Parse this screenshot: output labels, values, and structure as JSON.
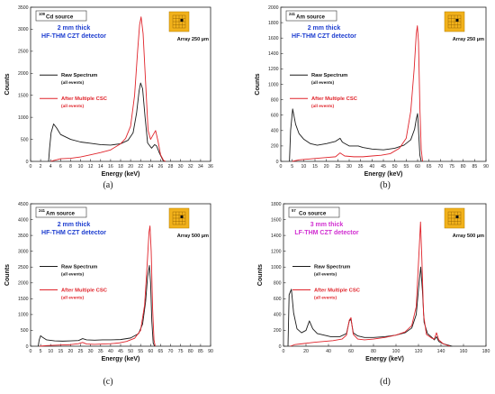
{
  "colors": {
    "raw": "#1a1a1a",
    "csc": "#e0242b",
    "thick_blue": "#1f3fd0",
    "thick_magenta": "#d12fd1",
    "pixel_gold": "#f2b21b"
  },
  "chart_data": [
    {
      "type": "line",
      "panel_label": "(a)",
      "source": {
        "sup": "109",
        "text": "Cd source"
      },
      "detector": {
        "line1": "2 mm thick",
        "line2": "HF-THM CZT detector",
        "color": "blue"
      },
      "array": "Array  250 µm",
      "xlabel": "Energy (keV)",
      "ylabel": "Counts",
      "xlim": [
        0,
        36
      ],
      "ylim": [
        0,
        3500
      ],
      "xticks": [
        0,
        2,
        4,
        6,
        8,
        10,
        12,
        14,
        16,
        18,
        20,
        22,
        24,
        26,
        28,
        30,
        32,
        34,
        36
      ],
      "yticks": [
        0,
        500,
        1000,
        1500,
        2000,
        2500,
        3000,
        3500
      ],
      "series": [
        {
          "name": "Raw Spectrum",
          "sub": "(all events)",
          "color": "raw",
          "points": [
            [
              3.6,
              0
            ],
            [
              3.8,
              300
            ],
            [
              4.1,
              650
            ],
            [
              4.6,
              850
            ],
            [
              5.2,
              760
            ],
            [
              6,
              610
            ],
            [
              8,
              500
            ],
            [
              10,
              440
            ],
            [
              12,
              410
            ],
            [
              14,
              380
            ],
            [
              16,
              370
            ],
            [
              18,
              400
            ],
            [
              19.5,
              480
            ],
            [
              20.5,
              650
            ],
            [
              21.2,
              1100
            ],
            [
              21.7,
              1600
            ],
            [
              22,
              1780
            ],
            [
              22.4,
              1650
            ],
            [
              22.9,
              1000
            ],
            [
              23.4,
              420
            ],
            [
              24.2,
              300
            ],
            [
              24.8,
              380
            ],
            [
              25.2,
              350
            ],
            [
              25.8,
              180
            ],
            [
              26.5,
              20
            ],
            [
              27,
              0
            ]
          ]
        },
        {
          "name": "After Multiple CSC",
          "sub": "(all events)",
          "color": "csc",
          "points": [
            [
              4,
              0
            ],
            [
              4.6,
              20
            ],
            [
              6,
              60
            ],
            [
              8,
              70
            ],
            [
              10,
              100
            ],
            [
              12,
              150
            ],
            [
              14,
              200
            ],
            [
              16,
              260
            ],
            [
              18,
              400
            ],
            [
              19,
              520
            ],
            [
              20,
              800
            ],
            [
              20.8,
              1500
            ],
            [
              21.4,
              2500
            ],
            [
              21.8,
              3100
            ],
            [
              22.1,
              3280
            ],
            [
              22.5,
              2900
            ],
            [
              23,
              1800
            ],
            [
              23.5,
              700
            ],
            [
              24,
              500
            ],
            [
              24.6,
              620
            ],
            [
              25,
              700
            ],
            [
              25.5,
              450
            ],
            [
              26,
              150
            ],
            [
              26.6,
              20
            ],
            [
              27,
              0
            ]
          ]
        }
      ]
    },
    {
      "type": "line",
      "panel_label": "(b)",
      "source": {
        "sup": "241",
        "text": "Am source"
      },
      "detector": {
        "line1": "2 mm thick",
        "line2": "HF-THM CZT detector",
        "color": "blue"
      },
      "array": "Array  250 µm",
      "xlabel": "Energy (keV)",
      "ylabel": "Counts",
      "xlim": [
        0,
        90
      ],
      "ylim": [
        0,
        2000
      ],
      "xticks": [
        0,
        5,
        10,
        15,
        20,
        25,
        30,
        35,
        40,
        45,
        50,
        55,
        60,
        65,
        70,
        75,
        80,
        85,
        90
      ],
      "yticks": [
        0,
        200,
        400,
        600,
        800,
        1000,
        1200,
        1400,
        1600,
        1800,
        2000
      ],
      "series": [
        {
          "name": "Raw Spectrum",
          "sub": "(all events)",
          "color": "raw",
          "points": [
            [
              3.8,
              0
            ],
            [
              4.3,
              400
            ],
            [
              5.2,
              680
            ],
            [
              6.5,
              480
            ],
            [
              8,
              360
            ],
            [
              10,
              290
            ],
            [
              13,
              230
            ],
            [
              16,
              210
            ],
            [
              20,
              230
            ],
            [
              24,
              260
            ],
            [
              26,
              300
            ],
            [
              27,
              250
            ],
            [
              30,
              200
            ],
            [
              34,
              200
            ],
            [
              36,
              180
            ],
            [
              40,
              160
            ],
            [
              45,
              150
            ],
            [
              50,
              170
            ],
            [
              54,
              210
            ],
            [
              57,
              280
            ],
            [
              58.7,
              420
            ],
            [
              59.5,
              560
            ],
            [
              60,
              620
            ],
            [
              60.5,
              350
            ],
            [
              61,
              80
            ],
            [
              61.6,
              0
            ]
          ]
        },
        {
          "name": "After Multiple CSC",
          "sub": "(all events)",
          "color": "csc",
          "points": [
            [
              5,
              0
            ],
            [
              8,
              20
            ],
            [
              12,
              30
            ],
            [
              16,
              40
            ],
            [
              20,
              50
            ],
            [
              24,
              60
            ],
            [
              26,
              110
            ],
            [
              28,
              70
            ],
            [
              32,
              60
            ],
            [
              36,
              60
            ],
            [
              40,
              70
            ],
            [
              44,
              80
            ],
            [
              48,
              100
            ],
            [
              52,
              170
            ],
            [
              55,
              300
            ],
            [
              57,
              650
            ],
            [
              58.5,
              1200
            ],
            [
              59.4,
              1650
            ],
            [
              59.9,
              1760
            ],
            [
              60.4,
              1550
            ],
            [
              61,
              700
            ],
            [
              61.6,
              150
            ],
            [
              62.2,
              0
            ]
          ]
        }
      ]
    },
    {
      "type": "line",
      "panel_label": "(c)",
      "source": {
        "sup": "241",
        "text": "Am source"
      },
      "detector": {
        "line1": "2 mm thick",
        "line2": "HF-THM CZT detector",
        "color": "blue"
      },
      "array": "Array  500 µm",
      "xlabel": "Energy (keV)",
      "ylabel": "Counts",
      "xlim": [
        0,
        90
      ],
      "ylim": [
        0,
        4500
      ],
      "xticks": [
        0,
        5,
        10,
        15,
        20,
        25,
        30,
        35,
        40,
        45,
        50,
        55,
        60,
        65,
        70,
        75,
        80,
        85,
        90
      ],
      "yticks": [
        0,
        500,
        1000,
        1500,
        2000,
        2500,
        3000,
        3500,
        4000,
        4500
      ],
      "series": [
        {
          "name": "Raw Spectrum",
          "sub": "(all events)",
          "color": "raw",
          "points": [
            [
              3.8,
              0
            ],
            [
              4.3,
              200
            ],
            [
              5,
              330
            ],
            [
              6,
              280
            ],
            [
              8,
              200
            ],
            [
              12,
              170
            ],
            [
              16,
              160
            ],
            [
              20,
              170
            ],
            [
              24,
              180
            ],
            [
              26,
              240
            ],
            [
              28,
              200
            ],
            [
              32,
              190
            ],
            [
              36,
              200
            ],
            [
              40,
              200
            ],
            [
              45,
              210
            ],
            [
              50,
              260
            ],
            [
              54,
              400
            ],
            [
              56,
              700
            ],
            [
              57.5,
              1400
            ],
            [
              58.5,
              2200
            ],
            [
              59.4,
              2550
            ],
            [
              60,
              2000
            ],
            [
              60.6,
              800
            ],
            [
              61.3,
              100
            ],
            [
              62,
              0
            ]
          ]
        },
        {
          "name": "After Multiple CSC",
          "sub": "(all events)",
          "color": "csc",
          "points": [
            [
              4.5,
              0
            ],
            [
              8,
              20
            ],
            [
              12,
              30
            ],
            [
              16,
              40
            ],
            [
              20,
              50
            ],
            [
              24,
              80
            ],
            [
              26,
              120
            ],
            [
              28,
              70
            ],
            [
              32,
              60
            ],
            [
              36,
              70
            ],
            [
              40,
              80
            ],
            [
              44,
              100
            ],
            [
              48,
              150
            ],
            [
              52,
              250
            ],
            [
              55,
              500
            ],
            [
              57,
              1300
            ],
            [
              58.3,
              2600
            ],
            [
              59.2,
              3600
            ],
            [
              59.7,
              3800
            ],
            [
              60.3,
              3000
            ],
            [
              61,
              1200
            ],
            [
              61.7,
              200
            ],
            [
              62.3,
              0
            ]
          ]
        }
      ]
    },
    {
      "type": "line",
      "panel_label": "(d)",
      "source": {
        "sup": "57",
        "text": "Co source"
      },
      "detector": {
        "line1": "3 mm thick",
        "line2": "LF-THM CZT detector",
        "color": "magenta"
      },
      "array": "Array  500 µm",
      "xlabel": "Energy (keV)",
      "ylabel": "Counts",
      "xlim": [
        0,
        180
      ],
      "ylim": [
        0,
        1800
      ],
      "xticks": [
        0,
        20,
        40,
        60,
        80,
        100,
        120,
        140,
        160,
        180
      ],
      "yticks": [
        0,
        200,
        400,
        600,
        800,
        1000,
        1200,
        1400,
        1600,
        1800
      ],
      "series": [
        {
          "name": "Raw Spectrum",
          "sub": "(all events)",
          "color": "raw",
          "points": [
            [
              4,
              0
            ],
            [
              5,
              650
            ],
            [
              7,
              720
            ],
            [
              9,
              420
            ],
            [
              12,
              220
            ],
            [
              16,
              170
            ],
            [
              20,
              200
            ],
            [
              23,
              320
            ],
            [
              26,
              220
            ],
            [
              30,
              160
            ],
            [
              36,
              140
            ],
            [
              42,
              120
            ],
            [
              50,
              120
            ],
            [
              56,
              160
            ],
            [
              58.5,
              320
            ],
            [
              60,
              340
            ],
            [
              62,
              170
            ],
            [
              66,
              130
            ],
            [
              72,
              110
            ],
            [
              80,
              110
            ],
            [
              90,
              120
            ],
            [
              100,
              140
            ],
            [
              108,
              170
            ],
            [
              114,
              230
            ],
            [
              118,
              400
            ],
            [
              120.5,
              800
            ],
            [
              122,
              1000
            ],
            [
              123.5,
              700
            ],
            [
              125,
              300
            ],
            [
              128,
              160
            ],
            [
              132,
              110
            ],
            [
              134,
              80
            ],
            [
              136,
              120
            ],
            [
              138,
              60
            ],
            [
              142,
              30
            ],
            [
              146,
              15
            ],
            [
              150,
              0
            ]
          ]
        },
        {
          "name": "After Multiple CSC",
          "sub": "(all events)",
          "color": "csc",
          "points": [
            [
              6,
              0
            ],
            [
              10,
              20
            ],
            [
              16,
              30
            ],
            [
              22,
              40
            ],
            [
              28,
              50
            ],
            [
              36,
              60
            ],
            [
              44,
              70
            ],
            [
              52,
              90
            ],
            [
              56,
              140
            ],
            [
              58.5,
              330
            ],
            [
              60,
              360
            ],
            [
              62,
              150
            ],
            [
              66,
              90
            ],
            [
              72,
              80
            ],
            [
              80,
              90
            ],
            [
              90,
              110
            ],
            [
              100,
              140
            ],
            [
              108,
              180
            ],
            [
              114,
              260
            ],
            [
              118,
              500
            ],
            [
              120.5,
              1200
            ],
            [
              121.8,
              1570
            ],
            [
              123,
              1100
            ],
            [
              124.5,
              400
            ],
            [
              127,
              150
            ],
            [
              132,
              100
            ],
            [
              134,
              90
            ],
            [
              136,
              170
            ],
            [
              138,
              80
            ],
            [
              142,
              30
            ],
            [
              148,
              0
            ]
          ]
        }
      ]
    }
  ]
}
